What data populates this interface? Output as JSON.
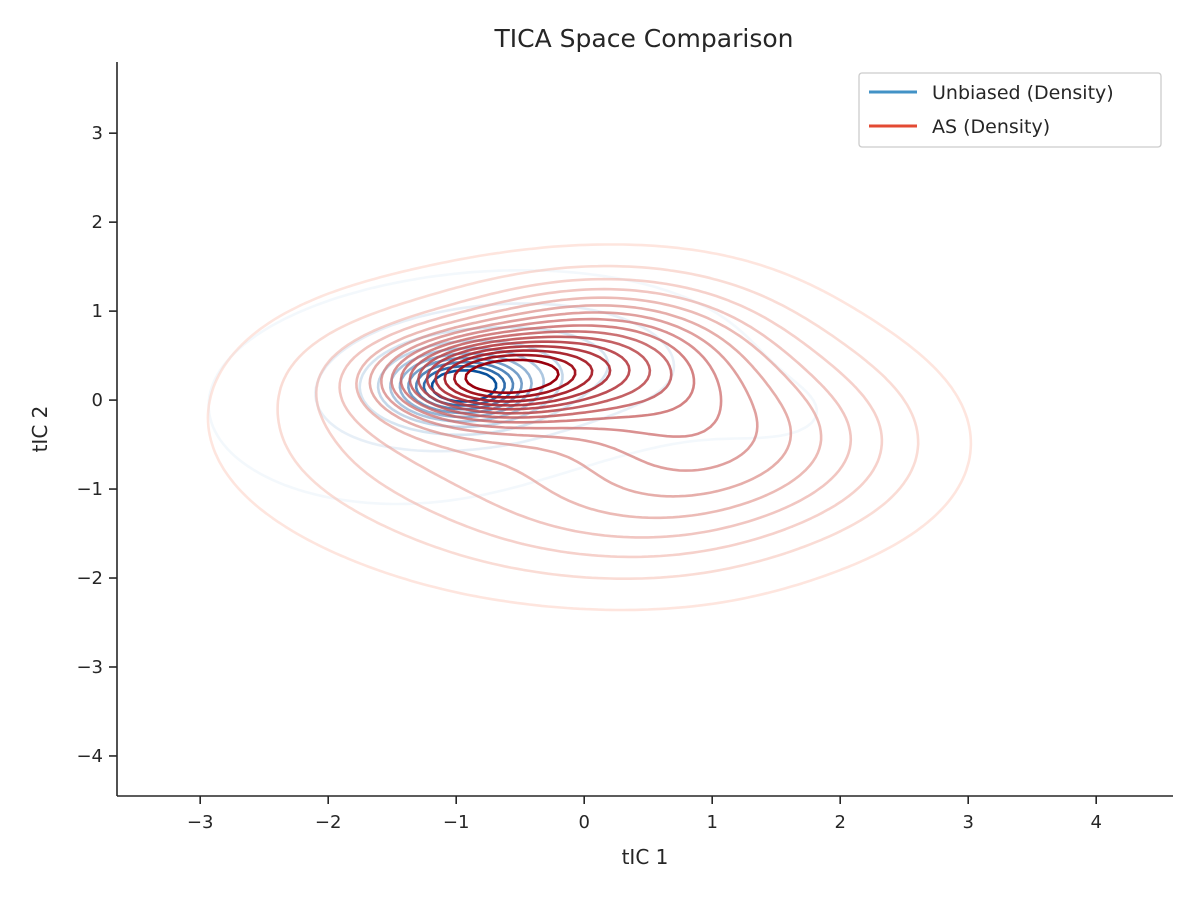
{
  "chart_data": {
    "type": "contour",
    "title": "TICA Space Comparison",
    "xlabel": "tIC 1",
    "ylabel": "tIC 2",
    "xlim": [
      -3.65,
      4.6
    ],
    "ylim": [
      -4.45,
      3.8
    ],
    "xticks": [
      -3,
      -2,
      -1,
      0,
      1,
      2,
      3,
      4
    ],
    "yticks": [
      -4,
      -3,
      -2,
      -1,
      0,
      1,
      2,
      3
    ],
    "xtick_labels": [
      "−3",
      "−2",
      "−1",
      "0",
      "1",
      "2",
      "3",
      "4"
    ],
    "ytick_labels": [
      "−4",
      "−3",
      "−2",
      "−1",
      "0",
      "1",
      "2",
      "3"
    ],
    "grid": false,
    "legend_position": "top-right",
    "series": [
      {
        "name": "Unbiased (Density)",
        "legend_color": "#4292c6",
        "color_light": "#deebf7",
        "color_dark": "#08519c",
        "levels": 10,
        "modes": [
          {
            "mx": -0.95,
            "my": 0.15,
            "sx": 0.34,
            "sy": 0.24,
            "w": 1.0
          },
          {
            "mx": -0.3,
            "my": 0.45,
            "sx": 0.9,
            "sy": 0.55,
            "w": 0.3
          },
          {
            "mx": -1.5,
            "my": -0.1,
            "sx": 1.0,
            "sy": 0.75,
            "w": 0.18
          },
          {
            "mx": 1.6,
            "my": -0.2,
            "sx": 0.6,
            "sy": 0.45,
            "w": 0.06
          }
        ],
        "outer_level_fraction": 0.05,
        "inner_level_fraction": 0.82
      },
      {
        "name": "AS (Density)",
        "legend_color": "#e34a33",
        "color_light": "#fdd0c2",
        "color_dark": "#99000d",
        "levels": 16,
        "modes": [
          {
            "mx": -0.75,
            "my": 0.25,
            "sx": 0.55,
            "sy": 0.32,
            "w": 1.0
          },
          {
            "mx": 0.1,
            "my": 0.55,
            "sx": 0.7,
            "sy": 0.5,
            "w": 0.65
          },
          {
            "mx": 0.9,
            "my": -0.3,
            "sx": 0.75,
            "sy": 0.85,
            "w": 0.5
          },
          {
            "mx": -1.1,
            "my": -0.2,
            "sx": 1.0,
            "sy": 0.85,
            "w": 0.35
          },
          {
            "mx": 1.9,
            "my": -0.5,
            "sx": 0.7,
            "sy": 0.7,
            "w": 0.2
          },
          {
            "mx": 0.0,
            "my": -1.3,
            "sx": 0.9,
            "sy": 0.6,
            "w": 0.2
          }
        ],
        "outer_level_fraction": 0.04,
        "inner_level_fraction": 0.9
      }
    ]
  }
}
